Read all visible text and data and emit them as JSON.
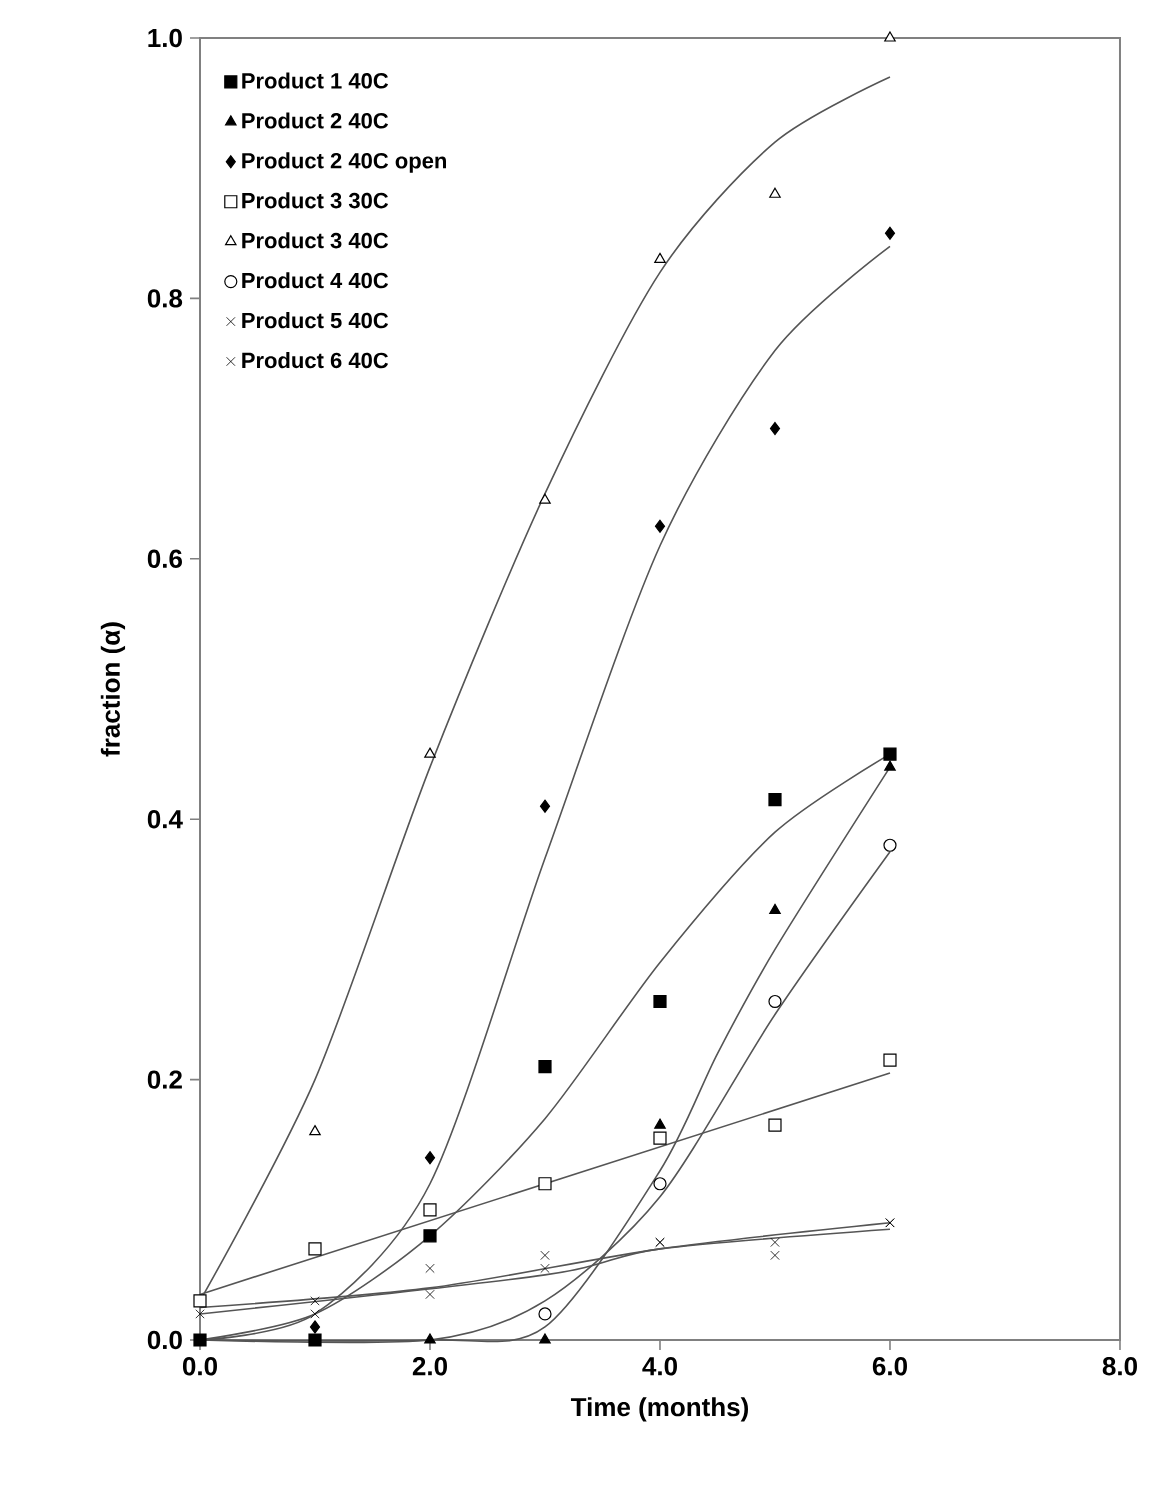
{
  "chart_data": {
    "type": "scatter",
    "xlabel": "Time (months)",
    "ylabel": "fraction (α)",
    "x": [
      0,
      1,
      2,
      3,
      4,
      5,
      6
    ],
    "xlim": [
      0,
      8
    ],
    "ylim": [
      0,
      1
    ],
    "xticks": [
      {
        "value": 0,
        "label": "0.0"
      },
      {
        "value": 2,
        "label": "2.0"
      },
      {
        "value": 4,
        "label": "4.0"
      },
      {
        "value": 6,
        "label": "6.0"
      },
      {
        "value": 8,
        "label": "8.0"
      }
    ],
    "yticks": [
      {
        "value": 0,
        "label": "0.0"
      },
      {
        "value": 0.2,
        "label": "0.2"
      },
      {
        "value": 0.4,
        "label": "0.4"
      },
      {
        "value": 0.6,
        "label": "0.6"
      },
      {
        "value": 0.8,
        "label": "0.8"
      },
      {
        "value": 1,
        "label": "1.0"
      }
    ],
    "legend": "top left",
    "grid": false,
    "series": [
      {
        "name": "Product 1 40C",
        "marker": "square",
        "color": "#000000",
        "values": [
          0.0,
          0.0,
          0.08,
          0.21,
          0.26,
          0.415,
          0.45
        ]
      },
      {
        "name": "Product 2 40C",
        "marker": "triangle",
        "color": "#000000",
        "values": [
          null,
          null,
          0.0,
          0.0,
          0.165,
          0.33,
          0.44
        ]
      },
      {
        "name": "Product 2 40C open",
        "marker": "diamond",
        "color": "#000000",
        "values": [
          null,
          0.01,
          0.14,
          0.41,
          0.625,
          0.7,
          0.85
        ]
      },
      {
        "name": "Product 3 30C",
        "marker": "square",
        "color": "#ffffff",
        "values": [
          0.03,
          0.07,
          0.1,
          0.12,
          0.155,
          0.165,
          0.215
        ]
      },
      {
        "name": "Product 3 40C",
        "marker": "triangle",
        "color": "#ffffff",
        "values": [
          null,
          0.16,
          0.45,
          0.645,
          0.83,
          0.88,
          1.0
        ]
      },
      {
        "name": "Product 4 40C",
        "marker": "circle",
        "color": "#ffffff",
        "values": [
          null,
          null,
          null,
          0.02,
          0.12,
          0.26,
          0.38
        ]
      },
      {
        "name": "Product 5 40C",
        "marker": "cross",
        "color": "#000000",
        "values": [
          0.02,
          0.03,
          0.035,
          0.055,
          0.075,
          0.065,
          0.09
        ]
      },
      {
        "name": "Product 6 40C",
        "marker": "cross",
        "color": "#000000",
        "values": [
          null,
          0.02,
          0.055,
          0.065,
          0.075,
          0.075,
          0.09
        ]
      },
      {
        "type": "line",
        "color": "#555555",
        "x": [
          0,
          1,
          2,
          3,
          4,
          5,
          6
        ],
        "values": [
          0.0,
          0.02,
          0.08,
          0.17,
          0.29,
          0.39,
          0.45
        ]
      },
      {
        "type": "line",
        "color": "#555555",
        "x": [
          0,
          2,
          3,
          4,
          4.5,
          5,
          6
        ],
        "values": [
          0.0,
          0.0,
          0.01,
          0.13,
          0.22,
          0.3,
          0.44
        ]
      },
      {
        "type": "line",
        "color": "#555555",
        "x": [
          0,
          1,
          2,
          3,
          4,
          5,
          6
        ],
        "values": [
          0.0,
          0.02,
          0.12,
          0.37,
          0.61,
          0.76,
          0.84
        ]
      },
      {
        "type": "line",
        "color": "#555555",
        "x": [
          0,
          6
        ],
        "values": [
          0.035,
          0.205
        ]
      },
      {
        "type": "line",
        "color": "#555555",
        "x": [
          0,
          1,
          2,
          3,
          4,
          5,
          6
        ],
        "values": [
          0.03,
          0.2,
          0.44,
          0.65,
          0.82,
          0.92,
          0.97
        ]
      },
      {
        "type": "line",
        "color": "#555555",
        "x": [
          0,
          2,
          3,
          4,
          5,
          6
        ],
        "values": [
          0.0,
          0.0,
          0.03,
          0.11,
          0.25,
          0.375
        ]
      },
      {
        "type": "line",
        "color": "#555555",
        "x": [
          0,
          3,
          4,
          6
        ],
        "values": [
          0.02,
          0.05,
          0.07,
          0.085
        ]
      },
      {
        "type": "line",
        "color": "#555555",
        "x": [
          0,
          2,
          4,
          6
        ],
        "values": [
          0.025,
          0.04,
          0.07,
          0.09
        ]
      }
    ]
  }
}
